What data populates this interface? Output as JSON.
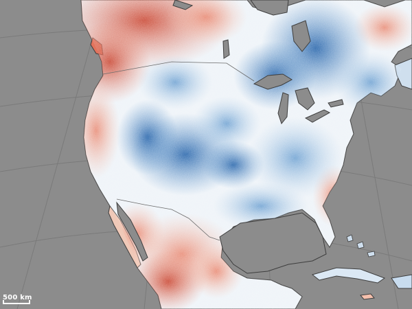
{
  "map": {
    "scale_bar_label": "500 km",
    "colors": {
      "ocean": "#8c8c8c",
      "graticule": "#7a7a7a",
      "coastline": "#3d3d3d",
      "neutral": "#eef3f8",
      "strong_warm": "#c8402b",
      "warm": "#e8826a",
      "light_warm": "#f5c0ad",
      "light_cool": "#b6d2ea",
      "cool": "#5b95cc",
      "strong_cool": "#1f5fa8",
      "lakes": "#8c8c8c"
    }
  }
}
